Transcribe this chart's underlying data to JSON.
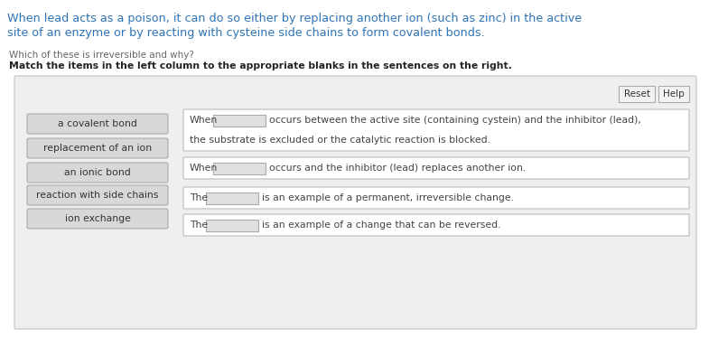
{
  "bg_color": "#ffffff",
  "header_line1": "When lead acts as a poison, it can do so either by replacing another ion (such as zinc) in the active",
  "header_line2": "site of an enzyme or by reacting with cysteine side chains to form covalent bonds.",
  "header_color": "#2e74b5",
  "subheader1": "Which of these is irreversible and why?",
  "subheader2": "Match the items in the left column to the appropriate blanks in the sentences on the right.",
  "subheader1_color": "#666666",
  "subheader2_color": "#222222",
  "left_items": [
    "a covalent bond",
    "replacement of an ion",
    "an ionic bond",
    "reaction with side chains",
    "ion exchange"
  ],
  "left_box_facecolor": "#d8d8d8",
  "left_box_edgecolor": "#aaaaaa",
  "outer_box_facecolor": "#efefef",
  "outer_box_edgecolor": "#cccccc",
  "sentence_box_facecolor": "#ffffff",
  "sentence_box_edgecolor": "#bbbbbb",
  "blank_box_facecolor": "#e0e0e0",
  "blank_box_edgecolor": "#aaaaaa",
  "btn_facecolor": "#f2f2f2",
  "btn_edgecolor": "#aaaaaa",
  "text_color": "#444444",
  "sentences": [
    {
      "prefix": "When",
      "mid": "",
      "suffix1": "occurs between the active site (containing cystein) and the inhibitor (lead),",
      "suffix2": "the substrate is excluded or the catalytic reaction is blocked.",
      "two_line": true
    },
    {
      "prefix": "When",
      "mid": "",
      "suffix1": "occurs and the inhibitor (lead) replaces another ion.",
      "suffix2": "",
      "two_line": false
    },
    {
      "prefix": "The",
      "mid": "",
      "suffix1": "is an example of a permanent, irreversible change.",
      "suffix2": "",
      "two_line": false
    },
    {
      "prefix": "The",
      "mid": "",
      "suffix1": "is an example of a change that can be reversed.",
      "suffix2": "",
      "two_line": false
    }
  ],
  "figsize": [
    7.85,
    3.74
  ],
  "dpi": 100
}
